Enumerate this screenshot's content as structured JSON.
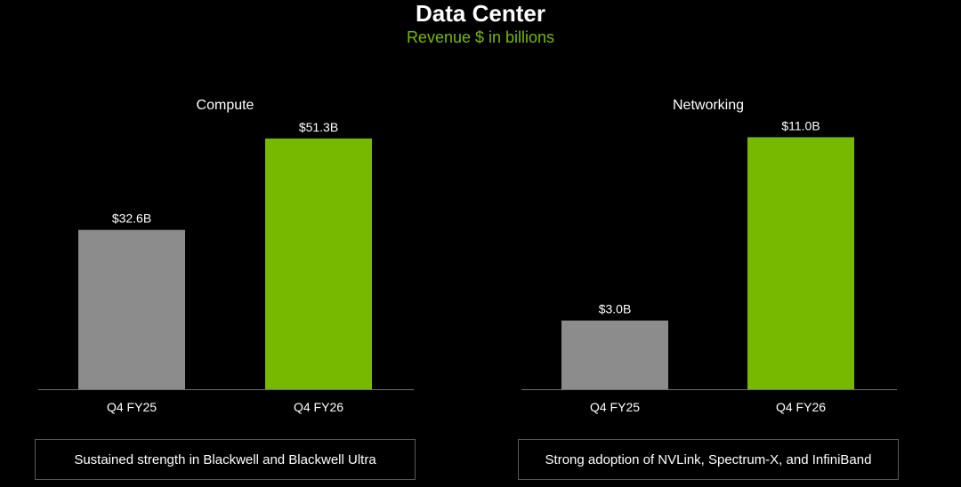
{
  "title": "Data Center",
  "subtitle": "Revenue $ in billions",
  "colors": {
    "accent": "#76b900",
    "prior": "#8c8c8c",
    "axis": "#6e6e6e"
  },
  "chart_data": [
    {
      "type": "bar",
      "title": "Compute",
      "categories": [
        "Q4 FY25",
        "Q4 FY26"
      ],
      "values": [
        32.6,
        51.3
      ],
      "labels": [
        "$32.6B",
        "$51.3B"
      ],
      "ylim": [
        0,
        60
      ],
      "grid": false
    },
    {
      "type": "bar",
      "title": "Networking",
      "categories": [
        "Q4 FY25",
        "Q4 FY26"
      ],
      "values": [
        3.0,
        11.0
      ],
      "labels": [
        "$3.0B",
        "$11.0B"
      ],
      "ylim": [
        0,
        12.8
      ],
      "grid": false
    }
  ],
  "notes": [
    "Sustained strength in Blackwell and Blackwell Ultra",
    "Strong adoption of NVLink, Spectrum-X, and InfiniBand"
  ]
}
